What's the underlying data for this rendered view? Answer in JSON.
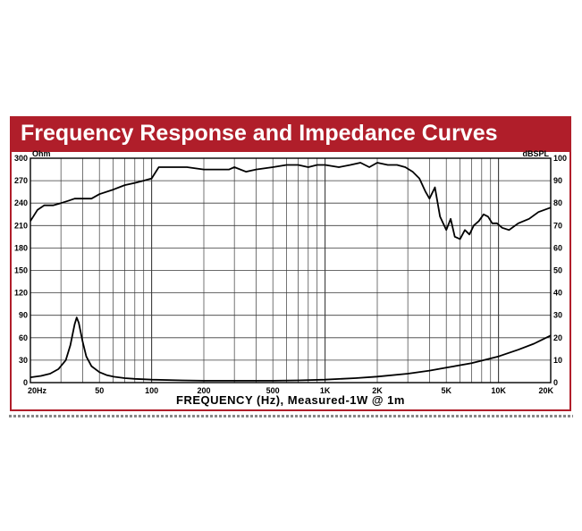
{
  "title": "Frequency Response and Impedance Curves",
  "chart_data": {
    "type": "line",
    "title": "Frequency Response and Impedance Curves",
    "xlabel": "FREQUENCY (Hz), Measured-1W @ 1m",
    "x_scale": "log",
    "xlim": [
      20,
      20000
    ],
    "x_ticks": [
      {
        "value": 20,
        "label": "20Hz"
      },
      {
        "value": 50,
        "label": "50"
      },
      {
        "value": 100,
        "label": "100"
      },
      {
        "value": 200,
        "label": "200"
      },
      {
        "value": 500,
        "label": "500"
      },
      {
        "value": 1000,
        "label": "1K"
      },
      {
        "value": 2000,
        "label": "2K"
      },
      {
        "value": 5000,
        "label": "5K"
      },
      {
        "value": 10000,
        "label": "10K"
      },
      {
        "value": 20000,
        "label": "20K"
      }
    ],
    "y_left": {
      "label": "Ohm",
      "lim": [
        0,
        300
      ],
      "ticks": [
        0,
        30,
        60,
        90,
        120,
        150,
        180,
        210,
        240,
        270,
        300
      ]
    },
    "y_right": {
      "label": "dBSPL",
      "lim": [
        0,
        100
      ],
      "ticks": [
        0,
        10,
        20,
        30,
        40,
        50,
        60,
        70,
        80,
        90,
        100
      ]
    },
    "grid": true,
    "series": [
      {
        "axis": "right",
        "x": [
          20,
          22,
          24,
          27,
          30,
          33,
          36,
          40,
          45,
          50,
          60,
          70,
          80,
          90,
          100,
          110,
          130,
          160,
          200,
          250,
          280,
          300,
          350,
          400,
          500,
          600,
          700,
          800,
          900,
          1000,
          1200,
          1400,
          1600,
          1800,
          2000,
          2300,
          2600,
          2900,
          3200,
          3500,
          3800,
          4000,
          4300,
          4600,
          5000,
          5300,
          5600,
          6000,
          6400,
          6800,
          7200,
          7700,
          8200,
          8700,
          9200,
          9800,
          10500,
          11500,
          13000,
          15000,
          17000,
          20000
        ],
        "y": [
          72,
          77,
          79,
          79,
          80,
          81,
          82,
          82,
          82,
          84,
          86,
          88,
          89,
          90,
          91,
          96,
          96,
          96,
          95,
          95,
          95,
          96,
          94,
          95,
          96,
          97,
          97,
          96,
          97,
          97,
          96,
          97,
          98,
          96,
          98,
          97,
          97,
          96,
          94,
          91,
          85,
          82,
          87,
          74,
          68,
          73,
          65,
          64,
          68,
          66,
          70,
          72,
          75,
          74,
          71,
          71,
          69,
          68,
          71,
          73,
          76,
          78
        ]
      },
      {
        "axis": "left",
        "x": [
          20,
          23,
          26,
          29,
          32,
          34,
          36,
          37,
          38,
          40,
          42,
          45,
          50,
          55,
          60,
          70,
          80,
          100,
          150,
          200,
          300,
          500,
          700,
          1000,
          1500,
          2000,
          3000,
          4000,
          5000,
          7000,
          10000,
          13000,
          16000,
          20000
        ],
        "y": [
          7,
          9,
          12,
          18,
          30,
          50,
          78,
          87,
          80,
          55,
          35,
          22,
          14,
          10,
          8,
          6,
          5,
          4,
          3,
          2.5,
          2.5,
          2.5,
          3,
          4,
          6,
          8,
          12,
          16,
          20,
          26,
          35,
          44,
          52,
          63
        ]
      }
    ]
  },
  "colors": {
    "accent": "#b01e2a",
    "grid": "#3a3a3a",
    "line": "#000000"
  }
}
